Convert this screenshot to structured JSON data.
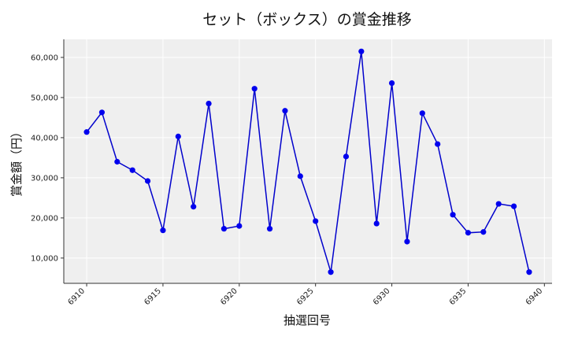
{
  "chart_data": {
    "type": "line",
    "title": "セット（ボックス）の賞金推移",
    "xlabel": "抽選回号",
    "ylabel": "賞金額（円）",
    "xlim": [
      6908.5,
      6940.5
    ],
    "ylim": [
      3700,
      64500
    ],
    "x_ticks": [
      6910,
      6915,
      6920,
      6925,
      6930,
      6935,
      6940
    ],
    "x_tick_labels": [
      "6910",
      "6915",
      "6920",
      "6925",
      "6930",
      "6935",
      "6940"
    ],
    "y_ticks": [
      10000,
      20000,
      30000,
      40000,
      50000,
      60000
    ],
    "y_tick_labels": [
      "10,000",
      "20,000",
      "30,000",
      "40,000",
      "50,000",
      "60,000"
    ],
    "grid": true,
    "series": [
      {
        "x": [
          6910,
          6911,
          6912,
          6913,
          6914,
          6915,
          6916,
          6917,
          6918,
          6919,
          6920,
          6921,
          6922,
          6923,
          6924,
          6925,
          6926,
          6927,
          6928,
          6929,
          6930,
          6931,
          6932,
          6933,
          6934,
          6935,
          6936,
          6937,
          6938,
          6939
        ],
        "values": [
          41400,
          46300,
          34000,
          31900,
          29200,
          16900,
          40300,
          22800,
          48500,
          17300,
          18000,
          52200,
          17300,
          46700,
          30400,
          19200,
          6500,
          35300,
          61500,
          18600,
          53600,
          14100,
          46100,
          38400,
          20800,
          16300,
          16500,
          23500,
          22900,
          6500
        ]
      }
    ],
    "colors": {
      "line": "#0000cc",
      "marker": "#0000ee",
      "plot_bg": "#efefef",
      "grid": "#ffffff"
    }
  }
}
